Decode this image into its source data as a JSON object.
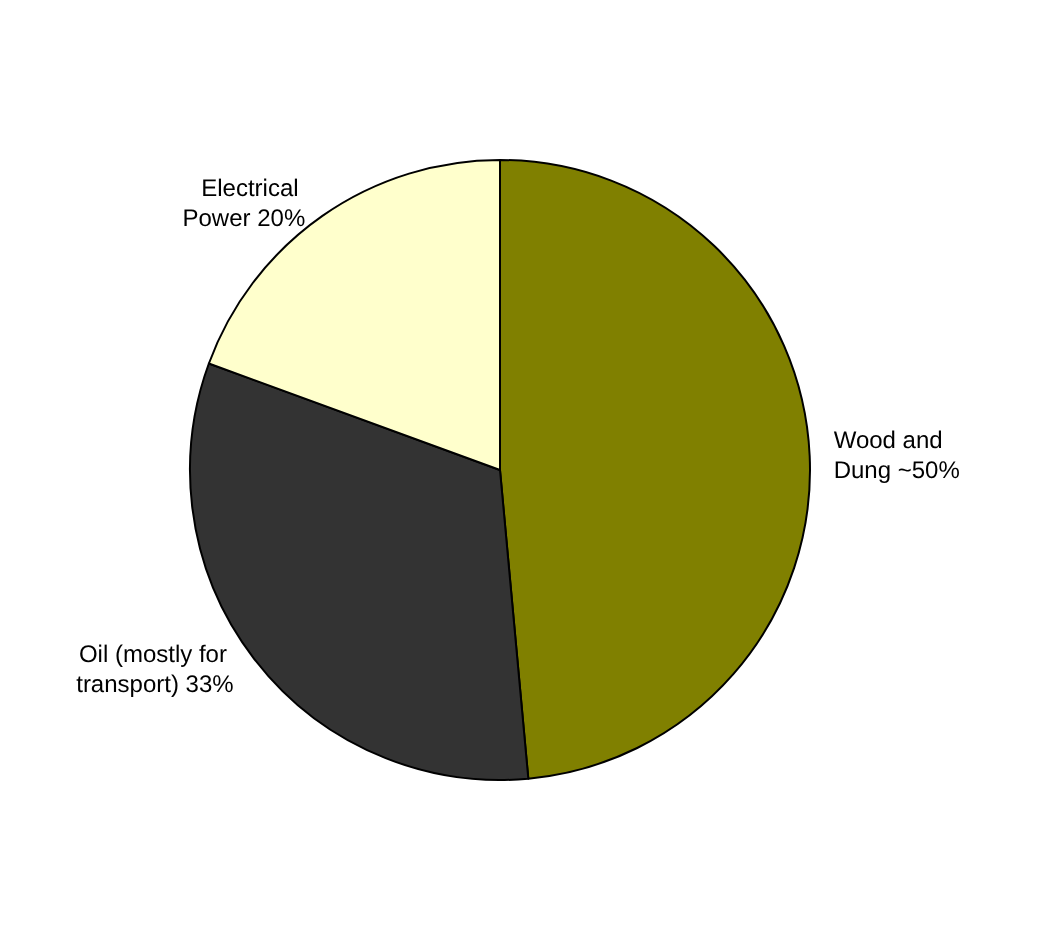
{
  "chart_data": {
    "type": "pie",
    "categories": [
      "Wood and Dung",
      "Oil (mostly for transport)",
      "Electrical Power"
    ],
    "values": [
      50,
      33,
      20
    ],
    "value_labels": [
      "~50%",
      "33%",
      "20%"
    ],
    "colors": [
      "#808000",
      "#333333",
      "#ffffcc"
    ],
    "legend": false
  }
}
